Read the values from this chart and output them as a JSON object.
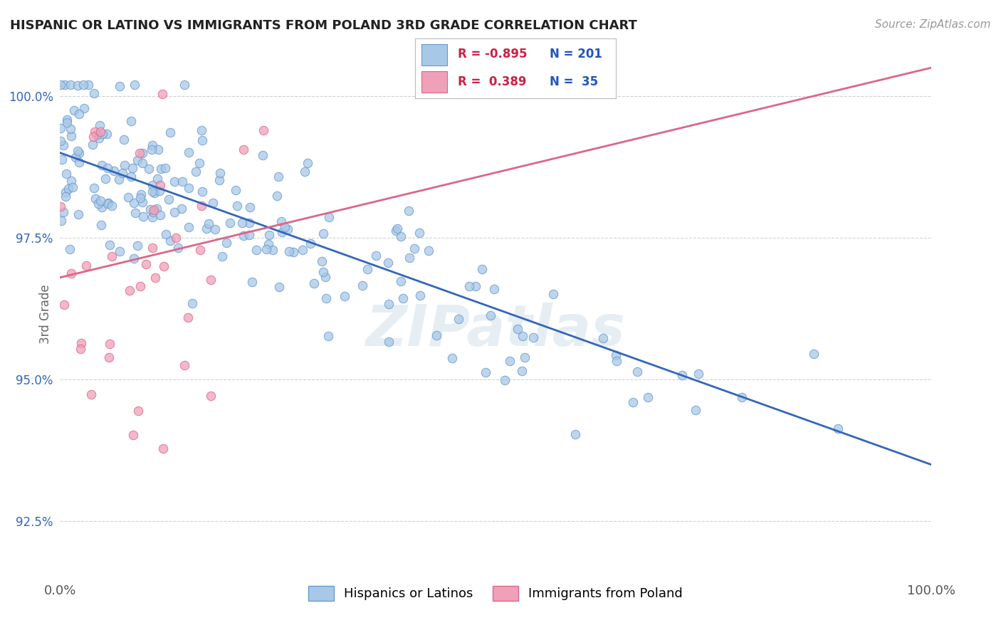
{
  "title": "HISPANIC OR LATINO VS IMMIGRANTS FROM POLAND 3RD GRADE CORRELATION CHART",
  "source_text": "Source: ZipAtlas.com",
  "ylabel": "3rd Grade",
  "xmin": 0.0,
  "xmax": 1.0,
  "ymin": 0.915,
  "ymax": 1.008,
  "yticks": [
    0.925,
    0.95,
    0.975,
    1.0
  ],
  "ytick_labels": [
    "92.5%",
    "95.0%",
    "97.5%",
    "100.0%"
  ],
  "xticks": [
    0.0,
    1.0
  ],
  "xtick_labels": [
    "0.0%",
    "100.0%"
  ],
  "blue_R": -0.895,
  "blue_N": 201,
  "pink_R": 0.389,
  "pink_N": 35,
  "blue_color": "#a8c8e8",
  "pink_color": "#f0a0b8",
  "blue_line_color": "#3366bb",
  "pink_line_color": "#dd6688",
  "blue_line_start_x": 0.0,
  "blue_line_start_y": 0.99,
  "blue_line_end_x": 1.0,
  "blue_line_end_y": 0.935,
  "pink_line_start_x": 0.0,
  "pink_line_start_y": 0.968,
  "pink_line_end_x": 1.0,
  "pink_line_end_y": 1.005,
  "watermark": "ZIPatlas",
  "legend_blue_label": "Hispanics or Latinos",
  "legend_pink_label": "Immigrants from Poland",
  "background_color": "#ffffff",
  "grid_color": "#cccccc",
  "blue_dot_edge": "#6699cc",
  "pink_dot_edge": "#dd6688"
}
